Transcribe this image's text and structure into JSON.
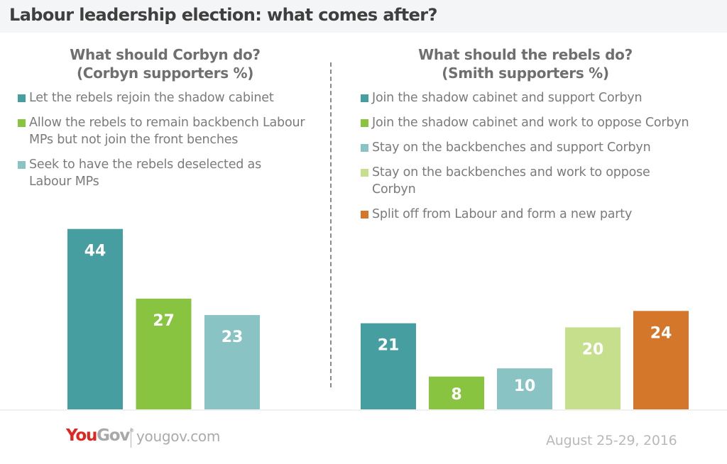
{
  "header": {
    "title": "Labour leadership election: what comes after?"
  },
  "panels": [
    {
      "title_line1": "What should Corbyn do?",
      "title_line2": "(Corbyn supporters %)",
      "legend": [
        {
          "label": "Let the rebels rejoin the shadow cabinet",
          "color": "#479ea0"
        },
        {
          "label": "Allow the rebels to remain backbench Labour MPs but not join the front benches",
          "color": "#88c440"
        },
        {
          "label": "Seek to have the rebels deselected as Labour MPs",
          "color": "#8ac3c4"
        }
      ]
    },
    {
      "title_line1": "What should the rebels do?",
      "title_line2": "(Smith supporters %)",
      "legend": [
        {
          "label": "Join the shadow cabinet and support Corbyn",
          "color": "#479ea0"
        },
        {
          "label": "Join the shadow cabinet and work to oppose Corbyn",
          "color": "#88c440"
        },
        {
          "label": "Stay on the backbenches and support Corbyn",
          "color": "#8ac3c4"
        },
        {
          "label": "Stay on the backbenches and work to oppose Corbyn",
          "color": "#c6df8c"
        },
        {
          "label": "Split off from Labour and form a new party",
          "color": "#d5772a"
        }
      ]
    }
  ],
  "chart_data": [
    {
      "type": "bar",
      "title": "What should Corbyn do? (Corbyn supporters %)",
      "categories": [
        "Let the rebels rejoin the shadow cabinet",
        "Allow the rebels to remain backbench Labour MPs but not join the front benches",
        "Seek to have the rebels deselected as Labour MPs"
      ],
      "values": [
        44,
        27,
        23
      ],
      "colors": [
        "#479ea0",
        "#88c440",
        "#8ac3c4"
      ],
      "xlabel": "",
      "ylabel": "%",
      "ylim": [
        0,
        44
      ],
      "grid": false,
      "legend": "top"
    },
    {
      "type": "bar",
      "title": "What should the rebels do? (Smith supporters %)",
      "categories": [
        "Join the shadow cabinet and support Corbyn",
        "Join the shadow cabinet and work to oppose Corbyn",
        "Stay on the backbenches and support Corbyn",
        "Stay on the backbenches and work to oppose Corbyn",
        "Split off from Labour and form a new party"
      ],
      "values": [
        21,
        8,
        10,
        20,
        24
      ],
      "colors": [
        "#479ea0",
        "#88c440",
        "#8ac3c4",
        "#c6df8c",
        "#d5772a"
      ],
      "xlabel": "",
      "ylabel": "%",
      "ylim": [
        0,
        44
      ],
      "grid": false,
      "legend": "top"
    }
  ],
  "footer": {
    "logo_you": "You",
    "logo_gov": "Gov",
    "logo_reg": "®",
    "url": "yougov.com",
    "date": "August 25-29, 2016"
  }
}
